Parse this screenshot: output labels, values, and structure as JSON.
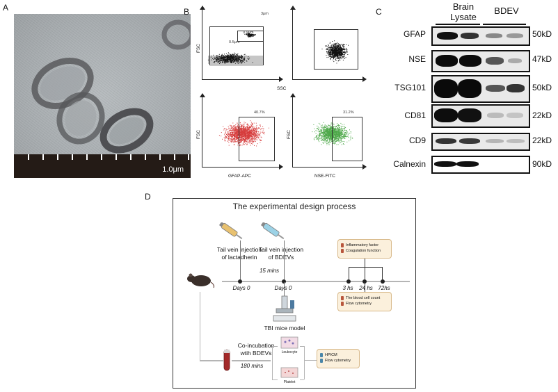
{
  "panels": {
    "a": {
      "letter": "A",
      "scale_label": "1.0μm"
    },
    "b": {
      "letter": "B",
      "top_left": {
        "corner": "3μm",
        "gate1": "0.9μm",
        "gate2": "0.5μm"
      },
      "ssc_label": "SSC",
      "fsc_label": "FSC",
      "bottom_left": {
        "gate": "40.7%",
        "xlabel": "GFAP-APC"
      },
      "bottom_right": {
        "gate": "31.2%",
        "xlabel": "NSE-FITC"
      }
    },
    "c": {
      "letter": "C",
      "col1_line1": "Brain",
      "col1_line2": "Lysate",
      "col2": "BDEV",
      "rows": [
        {
          "protein": "GFAP",
          "kd": "50kD"
        },
        {
          "protein": "NSE",
          "kd": "47kD"
        },
        {
          "protein": "TSG101",
          "kd": "50kD"
        },
        {
          "protein": "CD81",
          "kd": "22kD"
        },
        {
          "protein": "CD9",
          "kd": "22kD"
        },
        {
          "protein": "Calnexin",
          "kd": "90kD"
        }
      ]
    },
    "d": {
      "letter": "D",
      "title": "The experimental design process",
      "inj1_line1": "Tail vein injection",
      "inj1_line2": "of lactadherin",
      "inj2_line1": "Tail vein injection",
      "inj2_line2": "of BDEVs",
      "interval": "15 mins",
      "day0_a": "Days 0",
      "day0_b": "Days 0",
      "t1": "3 hs",
      "t2": "24 hs",
      "t3": "72hs",
      "top_box": [
        "Inflammatory factor",
        "Coagulation function"
      ],
      "bottom_box": [
        "The blood cell count",
        "Flow cytometry"
      ],
      "model": "TBI mice model",
      "coinc_line1": "Co-incubation",
      "coinc_line2": "wtih BDEVs",
      "coinc_time": "180 mins",
      "leukocyte": "Leukocyte",
      "platelet": "Platelet",
      "right_box": [
        "HPICM",
        "Flow cytometry"
      ]
    }
  }
}
